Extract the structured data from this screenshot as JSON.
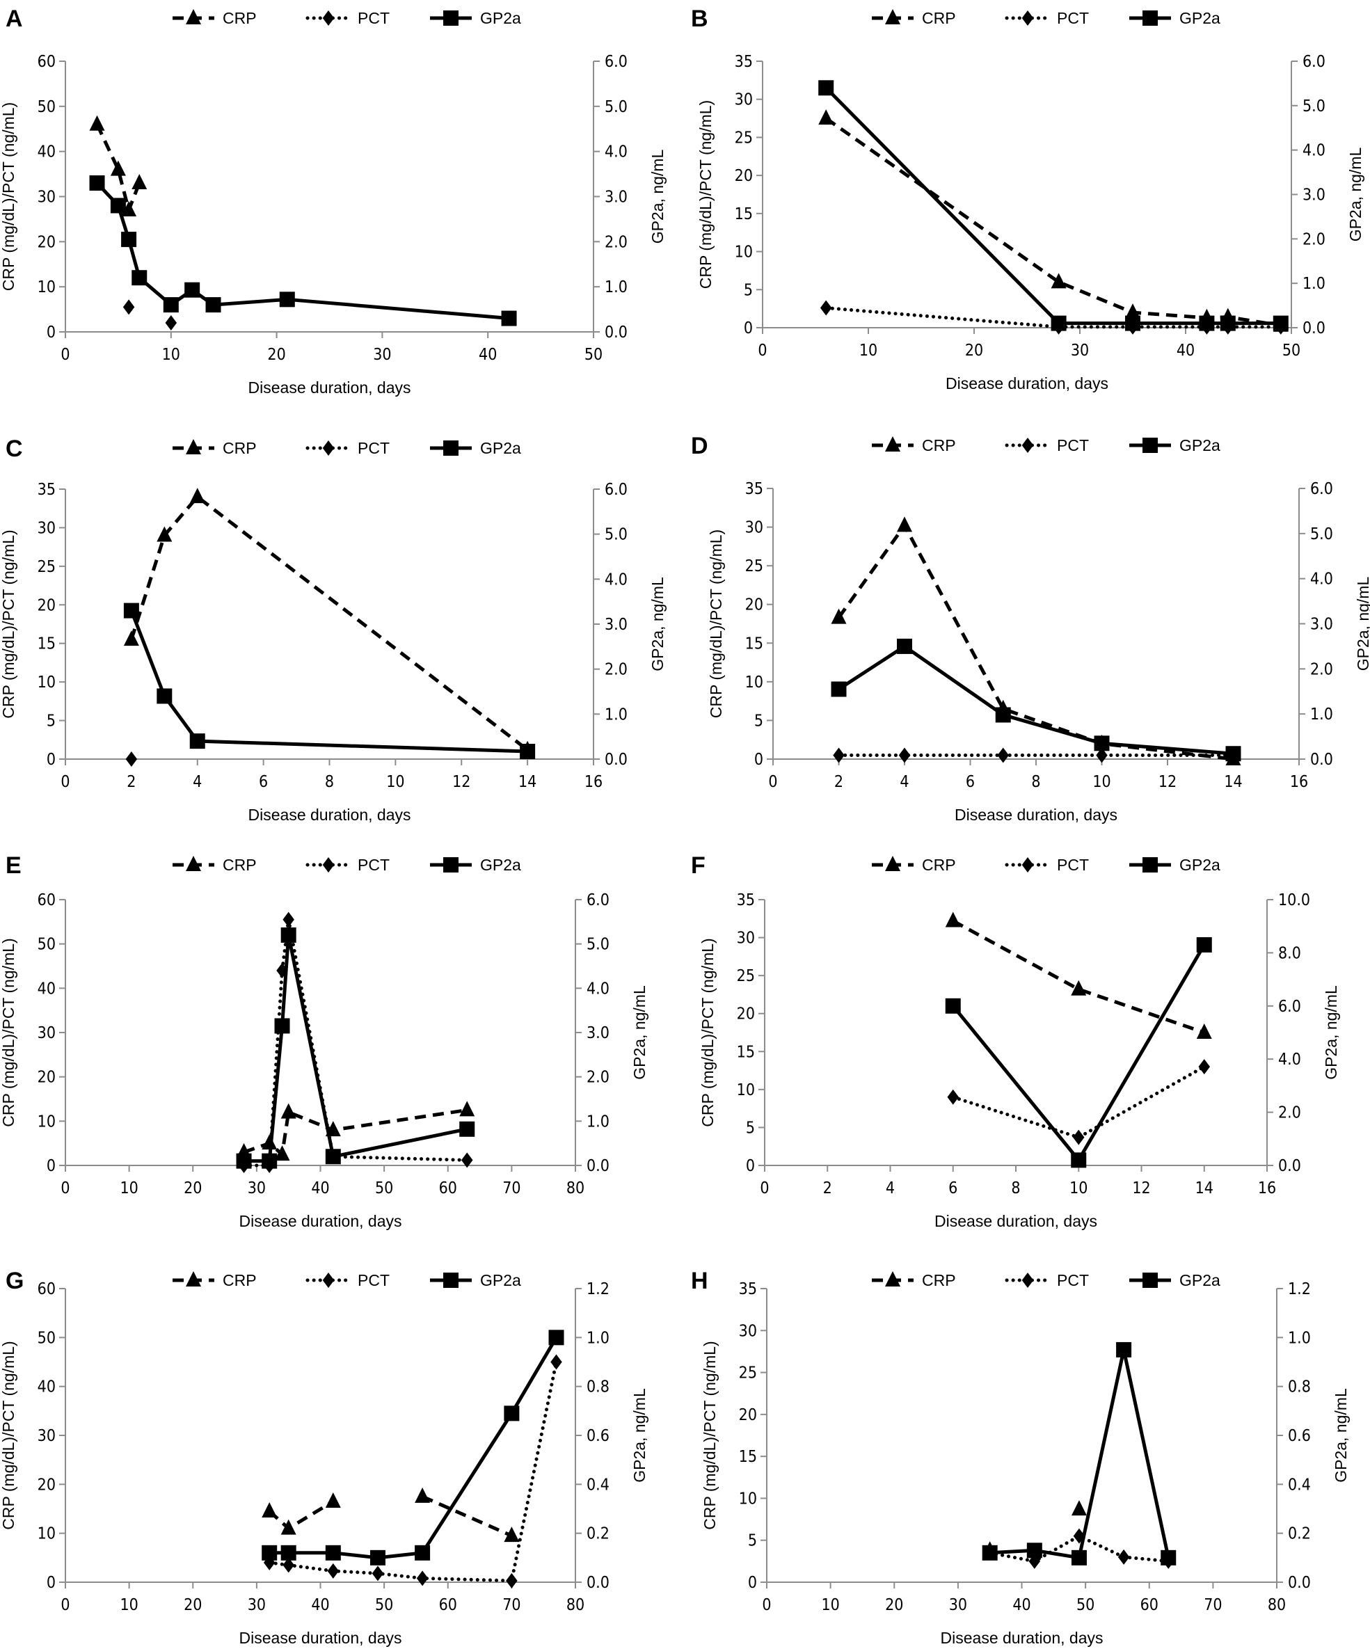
{
  "chart_data": [
    {
      "panel": "A",
      "type": "line",
      "xlabel": "Disease duration, days",
      "ylabel": "CRP (mg/dL)/PCT (ng/mL)",
      "y2label": "GP2a, ng/mL",
      "xlim": [
        0,
        50
      ],
      "ylim": [
        0,
        60
      ],
      "y2lim": [
        0,
        6
      ],
      "xticks": [
        "0",
        "10",
        "20",
        "30",
        "40",
        "50"
      ],
      "yticks": [
        "0",
        "10",
        "20",
        "30",
        "40",
        "50",
        "60"
      ],
      "y2ticks": [
        "0.0",
        "1.0",
        "2.0",
        "3.0",
        "4.0",
        "5.0",
        "6.0"
      ],
      "legend": [
        "CRP",
        "PCT",
        "GP2a"
      ],
      "legend_position": "top",
      "series": [
        {
          "name": "CRP",
          "axis": "left",
          "style": "dashed",
          "marker": "triangle",
          "x": [
            3,
            5,
            6,
            7
          ],
          "y": [
            46,
            36,
            27,
            33
          ]
        },
        {
          "name": "PCT",
          "axis": "left",
          "style": "dotted",
          "marker": "diamond",
          "x": [
            6,
            7,
            10
          ],
          "y": [
            5.5,
            null,
            2
          ]
        },
        {
          "name": "GP2a",
          "axis": "right",
          "style": "solid",
          "marker": "square",
          "x": [
            3,
            5,
            6,
            7,
            10,
            12,
            14,
            21,
            42
          ],
          "y": [
            3.3,
            2.8,
            2.05,
            1.2,
            0.6,
            0.93,
            0.6,
            0.72,
            0.3
          ]
        }
      ]
    },
    {
      "panel": "B",
      "type": "line",
      "xlabel": "Disease duration, days",
      "ylabel": "CRP (mg/dL)/PCT (ng/mL)",
      "y2label": "GP2a, ng/mL",
      "xlim": [
        0,
        50
      ],
      "ylim": [
        0,
        35
      ],
      "y2lim": [
        0,
        6
      ],
      "xticks": [
        "0",
        "10",
        "20",
        "30",
        "40",
        "50"
      ],
      "yticks": [
        "0",
        "5",
        "10",
        "15",
        "20",
        "25",
        "30",
        "35"
      ],
      "y2ticks": [
        "0.0",
        "1.0",
        "2.0",
        "3.0",
        "4.0",
        "5.0",
        "6.0"
      ],
      "legend": [
        "CRP",
        "PCT",
        "GP2a"
      ],
      "legend_position": "top",
      "series": [
        {
          "name": "CRP",
          "axis": "left",
          "style": "dashed",
          "marker": "triangle",
          "x": [
            6,
            28,
            35,
            42,
            44,
            49
          ],
          "y": [
            27.5,
            6,
            2,
            1.3,
            1.4,
            0.3
          ]
        },
        {
          "name": "PCT",
          "axis": "left",
          "style": "dotted",
          "marker": "diamond",
          "x": [
            6,
            28,
            35,
            42,
            44,
            49
          ],
          "y": [
            2.6,
            0.1,
            0.1,
            0.1,
            0.1,
            0.1
          ]
        },
        {
          "name": "GP2a",
          "axis": "right",
          "style": "solid",
          "marker": "square",
          "x": [
            6,
            28,
            35,
            42,
            44,
            49
          ],
          "y": [
            5.4,
            0.1,
            0.1,
            0.1,
            0.1,
            0.1
          ]
        }
      ]
    },
    {
      "panel": "C",
      "type": "line",
      "xlabel": "Disease duration, days",
      "ylabel": "CRP (mg/dL)/PCT (ng/mL)",
      "y2label": "GP2a, ng/mL",
      "xlim": [
        0,
        16
      ],
      "ylim": [
        0,
        35
      ],
      "y2lim": [
        0,
        6
      ],
      "xticks": [
        "0",
        "2",
        "4",
        "6",
        "8",
        "10",
        "12",
        "14",
        "16"
      ],
      "yticks": [
        "0",
        "5",
        "10",
        "15",
        "20",
        "25",
        "30",
        "35"
      ],
      "y2ticks": [
        "0.0",
        "1.0",
        "2.0",
        "3.0",
        "4.0",
        "5.0",
        "6.0"
      ],
      "legend": [
        "CRP",
        "PCT",
        "GP2a"
      ],
      "legend_position": "top",
      "series": [
        {
          "name": "CRP",
          "axis": "left",
          "style": "dashed",
          "marker": "triangle",
          "x": [
            2,
            3,
            4,
            14
          ],
          "y": [
            15.5,
            29,
            34,
            1.2
          ]
        },
        {
          "name": "PCT",
          "axis": "left",
          "style": "dotted",
          "marker": "diamond",
          "x": [
            2
          ],
          "y": [
            0
          ]
        },
        {
          "name": "GP2a",
          "axis": "right",
          "style": "solid",
          "marker": "square",
          "x": [
            2,
            3,
            4,
            14
          ],
          "y": [
            3.3,
            1.4,
            0.4,
            0.17
          ]
        }
      ]
    },
    {
      "panel": "D",
      "type": "line",
      "xlabel": "Disease duration, days",
      "ylabel": "CRP (mg/dL)/PCT (ng/mL)",
      "y2label": "GP2a, ng/mL",
      "xlim": [
        0,
        16
      ],
      "ylim": [
        0,
        35
      ],
      "y2lim": [
        0,
        6
      ],
      "xticks": [
        "0",
        "2",
        "4",
        "6",
        "8",
        "10",
        "12",
        "14",
        "16"
      ],
      "yticks": [
        "0",
        "5",
        "10",
        "15",
        "20",
        "25",
        "30",
        "35"
      ],
      "y2ticks": [
        "0.0",
        "1.0",
        "2.0",
        "3.0",
        "4.0",
        "5.0",
        "6.0"
      ],
      "legend": [
        "CRP",
        "PCT",
        "GP2a"
      ],
      "legend_position": "top",
      "series": [
        {
          "name": "CRP",
          "axis": "left",
          "style": "dashed",
          "marker": "triangle",
          "x": [
            2,
            4,
            7,
            10,
            14
          ],
          "y": [
            18.3,
            30.2,
            6.5,
            2,
            0
          ]
        },
        {
          "name": "PCT",
          "axis": "left",
          "style": "dotted",
          "marker": "diamond",
          "x": [
            2,
            4,
            7,
            10,
            14
          ],
          "y": [
            0.5,
            0.5,
            0.5,
            0.5,
            0.5
          ]
        },
        {
          "name": "GP2a",
          "axis": "right",
          "style": "solid",
          "marker": "square",
          "x": [
            2,
            4,
            7,
            10,
            14
          ],
          "y": [
            1.55,
            2.5,
            0.98,
            0.35,
            0.12
          ]
        }
      ]
    },
    {
      "panel": "E",
      "type": "line",
      "xlabel": "Disease duration, days",
      "ylabel": "CRP (mg/dL)/PCT (ng/mL)",
      "y2label": "GP2a, ng/mL",
      "xlim": [
        0,
        80
      ],
      "ylim": [
        0,
        60
      ],
      "y2lim": [
        0,
        6
      ],
      "xticks": [
        "0",
        "10",
        "20",
        "30",
        "40",
        "50",
        "60",
        "70",
        "80"
      ],
      "yticks": [
        "0",
        "10",
        "20",
        "30",
        "40",
        "50",
        "60"
      ],
      "y2ticks": [
        "0.0",
        "1.0",
        "2.0",
        "3.0",
        "4.0",
        "5.0",
        "6.0"
      ],
      "legend": [
        "CRP",
        "PCT",
        "GP2a"
      ],
      "legend_position": "top",
      "series": [
        {
          "name": "CRP",
          "axis": "left",
          "style": "dashed",
          "marker": "triangle",
          "x": [
            28,
            32,
            34,
            35,
            42,
            63
          ],
          "y": [
            3,
            5,
            2.5,
            12,
            8,
            12.5
          ]
        },
        {
          "name": "PCT",
          "axis": "left",
          "style": "dotted",
          "marker": "diamond",
          "x": [
            28,
            32,
            34,
            35,
            42,
            63
          ],
          "y": [
            0,
            0,
            44,
            55.5,
            2,
            1.2
          ]
        },
        {
          "name": "GP2a",
          "axis": "right",
          "style": "solid",
          "marker": "square",
          "x": [
            28,
            32,
            34,
            35,
            42,
            63
          ],
          "y": [
            0.1,
            0.1,
            3.15,
            5.2,
            0.2,
            0.82
          ]
        }
      ]
    },
    {
      "panel": "F",
      "type": "line",
      "xlabel": "Disease duration, days",
      "ylabel": "CRP (mg/dL)/PCT (ng/mL)",
      "y2label": "GP2a, ng/mL",
      "xlim": [
        0,
        16
      ],
      "ylim": [
        0,
        35
      ],
      "y2lim": [
        0,
        10
      ],
      "xticks": [
        "0",
        "2",
        "4",
        "6",
        "8",
        "10",
        "12",
        "14",
        "16"
      ],
      "yticks": [
        "0",
        "5",
        "10",
        "15",
        "20",
        "25",
        "30",
        "35"
      ],
      "y2ticks": [
        "0.0",
        "2.0",
        "4.0",
        "6.0",
        "8.0",
        "10.0"
      ],
      "legend": [
        "CRP",
        "PCT",
        "GP2a"
      ],
      "legend_position": "top",
      "series": [
        {
          "name": "CRP",
          "axis": "left",
          "style": "dashed",
          "marker": "triangle",
          "x": [
            6,
            10,
            14
          ],
          "y": [
            32.2,
            23.2,
            17.5
          ]
        },
        {
          "name": "PCT",
          "axis": "left",
          "style": "dotted",
          "marker": "diamond",
          "x": [
            6,
            10,
            14
          ],
          "y": [
            9,
            3.7,
            13
          ]
        },
        {
          "name": "GP2a",
          "axis": "right",
          "style": "solid",
          "marker": "square",
          "x": [
            6,
            10,
            14
          ],
          "y": [
            6.0,
            0.2,
            8.3
          ]
        }
      ]
    },
    {
      "panel": "G",
      "type": "line",
      "xlabel": "Disease duration, days",
      "ylabel": "CRP (mg/dL)/PCT (ng/mL)",
      "y2label": "GP2a, ng/mL",
      "xlim": [
        0,
        80
      ],
      "ylim": [
        0,
        60
      ],
      "y2lim": [
        0,
        1.2
      ],
      "xticks": [
        "0",
        "10",
        "20",
        "30",
        "40",
        "50",
        "60",
        "70",
        "80"
      ],
      "yticks": [
        "0",
        "10",
        "20",
        "30",
        "40",
        "50",
        "60"
      ],
      "y2ticks": [
        "0.0",
        "0.2",
        "0.4",
        "0.6",
        "0.8",
        "1.0",
        "1.2"
      ],
      "legend": [
        "CRP",
        "PCT",
        "GP2a"
      ],
      "legend_position": "top",
      "series": [
        {
          "name": "CRP",
          "axis": "left",
          "style": "dashed",
          "marker": "triangle",
          "x": [
            32,
            35,
            42,
            49,
            56,
            70
          ],
          "y": [
            14.5,
            11,
            16.5,
            null,
            17.5,
            9.5
          ]
        },
        {
          "name": "PCT",
          "axis": "left",
          "style": "dotted",
          "marker": "diamond",
          "x": [
            32,
            35,
            42,
            49,
            56,
            70,
            77
          ],
          "y": [
            4,
            3.5,
            2.3,
            1.8,
            0.8,
            0.3,
            45
          ]
        },
        {
          "name": "GP2a",
          "axis": "right",
          "style": "solid",
          "marker": "square",
          "x": [
            32,
            35,
            42,
            49,
            56,
            70,
            77
          ],
          "y": [
            0.12,
            0.12,
            0.12,
            0.1,
            0.12,
            0.69,
            1.0
          ]
        }
      ]
    },
    {
      "panel": "H",
      "type": "line",
      "xlabel": "Disease duration, days",
      "ylabel": "CRP (mg/dL)/PCT (ng/mL)",
      "y2label": "GP2a, ng/mL",
      "xlim": [
        0,
        80
      ],
      "ylim": [
        0,
        35
      ],
      "y2lim": [
        0,
        1.2
      ],
      "xticks": [
        "0",
        "10",
        "20",
        "30",
        "40",
        "50",
        "60",
        "70",
        "80"
      ],
      "yticks": [
        "0",
        "5",
        "10",
        "15",
        "20",
        "25",
        "30",
        "35"
      ],
      "y2ticks": [
        "0.0",
        "0.2",
        "0.4",
        "0.6",
        "0.8",
        "1.0",
        "1.2"
      ],
      "legend": [
        "CRP",
        "PCT",
        "GP2a"
      ],
      "legend_position": "top",
      "series": [
        {
          "name": "CRP",
          "axis": "left",
          "style": "dashed",
          "marker": "triangle",
          "x": [
            35,
            42,
            49
          ],
          "y": [
            3.8,
            null,
            8.7
          ]
        },
        {
          "name": "PCT",
          "axis": "left",
          "style": "dotted",
          "marker": "diamond",
          "x": [
            35,
            42,
            49,
            56,
            63
          ],
          "y": [
            3.5,
            2.5,
            5.5,
            3,
            2.5
          ]
        },
        {
          "name": "GP2a",
          "axis": "right",
          "style": "solid",
          "marker": "square",
          "x": [
            35,
            42,
            49,
            56,
            63
          ],
          "y": [
            0.12,
            0.13,
            0.1,
            0.95,
            0.1
          ]
        }
      ]
    }
  ],
  "colors": {
    "line": "#000000",
    "axis": "#8c8c8c",
    "background": "#ffffff"
  }
}
